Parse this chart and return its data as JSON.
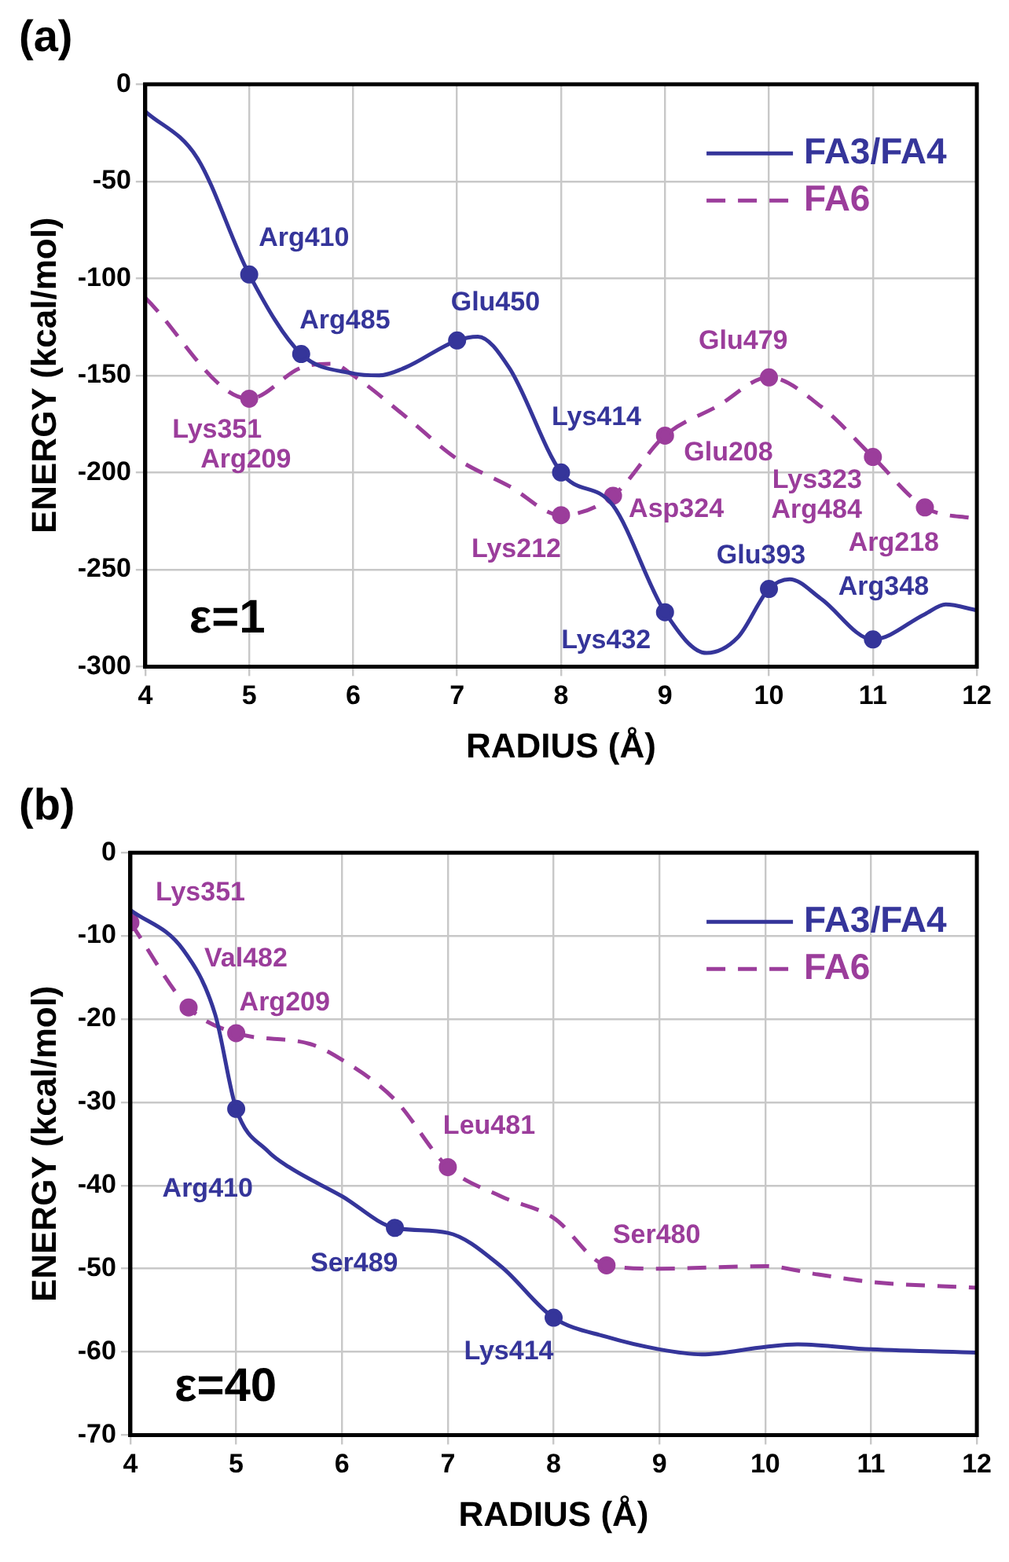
{
  "chart_data": [
    {
      "type": "line",
      "title": "(a)",
      "xlabel": "RADIUS (Å)",
      "ylabel": "ENERGY (kcal/mol)",
      "xlim": [
        4,
        12
      ],
      "xticks": [
        4,
        5,
        6,
        7,
        8,
        9,
        10,
        11,
        12
      ],
      "ylim": [
        -300,
        0
      ],
      "yticks": [
        -300,
        -250,
        -200,
        -150,
        -100,
        -50,
        0
      ],
      "grid": true,
      "legend": "top right",
      "series": [
        {
          "name": "FA3/FA4",
          "color": "#35359a",
          "line_style": "solid",
          "x": [
            4,
            4.5,
            5,
            5.5,
            6,
            6.25,
            6.5,
            7,
            7.2,
            7.5,
            8,
            8.5,
            9,
            9.4,
            9.7,
            10,
            10.2,
            10.5,
            11,
            11.5,
            11.7,
            12
          ],
          "values": [
            -14,
            -38,
            -98,
            -139,
            -149,
            -150,
            -146,
            -132,
            -130,
            -146,
            -200,
            -217,
            -272,
            -293,
            -285,
            -260,
            -255,
            -265,
            -286,
            -273,
            -268,
            -271
          ]
        },
        {
          "name": "FA6",
          "color": "#9b3d9b",
          "line_style": "dashed",
          "x": [
            4,
            5,
            5.5,
            5.8,
            6,
            6.5,
            7,
            7.5,
            8,
            8.5,
            9,
            9.5,
            10,
            10.5,
            11,
            11.5,
            12
          ],
          "values": [
            -110,
            -162,
            -146,
            -144,
            -150,
            -171,
            -193,
            -207,
            -222,
            -212,
            -181,
            -166,
            -151,
            -166,
            -192,
            -218,
            -224
          ]
        }
      ],
      "annotations": [
        {
          "text": "Arg410",
          "x": 5,
          "y": -98
        },
        {
          "text": "Arg485",
          "x": 5.5,
          "y": -139
        },
        {
          "text": "Glu450",
          "x": 7,
          "y": -132
        },
        {
          "text": "Lys414",
          "x": 8,
          "y": -200
        },
        {
          "text": "Lys432",
          "x": 9,
          "y": -272
        },
        {
          "text": "Glu393",
          "x": 10,
          "y": -260
        },
        {
          "text": "Arg348",
          "x": 11,
          "y": -286
        },
        {
          "text": "Lys351",
          "x": 5,
          "y": -162
        },
        {
          "text": "Arg209",
          "x": 5,
          "y": -162
        },
        {
          "text": "Lys212",
          "x": 8,
          "y": -222
        },
        {
          "text": "Asp324",
          "x": 8.5,
          "y": -212
        },
        {
          "text": "Glu208",
          "x": 9,
          "y": -181
        },
        {
          "text": "Glu479",
          "x": 10,
          "y": -151
        },
        {
          "text": "Lys323",
          "x": 11,
          "y": -192
        },
        {
          "text": "Arg484",
          "x": 11,
          "y": -192
        },
        {
          "text": "Arg218",
          "x": 11.5,
          "y": -218
        },
        "ε=1"
      ]
    },
    {
      "type": "line",
      "title": "(b)",
      "xlabel": "RADIUS (Å)",
      "ylabel": "ENERGY (kcal/mol)",
      "xlim": [
        4,
        12
      ],
      "xticks": [
        4,
        5,
        6,
        7,
        8,
        9,
        10,
        11,
        12
      ],
      "ylim": [
        -70,
        0
      ],
      "yticks": [
        -70,
        -60,
        -50,
        -40,
        -30,
        -20,
        -10,
        0
      ],
      "grid": true,
      "legend": "top right",
      "series": [
        {
          "name": "FA3/FA4",
          "color": "#35359a",
          "line_style": "solid",
          "x": [
            4,
            4.5,
            4.8,
            5,
            5.3,
            5.5,
            6,
            6.5,
            7,
            7.5,
            8,
            8.5,
            9,
            9.4,
            10,
            10.3,
            11,
            12
          ],
          "values": [
            -6.9,
            -11.7,
            -19.4,
            -30.8,
            -35.9,
            -37.8,
            -41.3,
            -45.1,
            -45.7,
            -49.7,
            -55.9,
            -58.2,
            -59.7,
            -60.3,
            -59.4,
            -59.1,
            -59.7,
            -60.1
          ]
        },
        {
          "name": "FA6",
          "color": "#9b3d9b",
          "line_style": "dashed",
          "x": [
            4,
            4.55,
            5,
            5.7,
            6,
            6.5,
            7,
            7.5,
            8,
            8.5,
            9,
            10,
            10.5,
            11,
            12
          ],
          "values": [
            -8.4,
            -18.6,
            -21.7,
            -23,
            -24.9,
            -29.7,
            -37.8,
            -41.3,
            -43.9,
            -49.6,
            -50,
            -49.7,
            -50.7,
            -51.6,
            -52.3
          ]
        }
      ],
      "annotations": [
        {
          "text": "Lys351",
          "x": 4,
          "y": -8.4
        },
        {
          "text": "Val482",
          "x": 4.55,
          "y": -18.6
        },
        {
          "text": "Arg209",
          "x": 5,
          "y": -21.7
        },
        {
          "text": "Leu481",
          "x": 7,
          "y": -37.8
        },
        {
          "text": "Ser480",
          "x": 8.5,
          "y": -49.6
        },
        {
          "text": "Arg410",
          "x": 5,
          "y": -30.8
        },
        {
          "text": "Ser489",
          "x": 6.5,
          "y": -45.1
        },
        {
          "text": "Lys414",
          "x": 8,
          "y": -55.9
        },
        "ε=40"
      ]
    }
  ]
}
